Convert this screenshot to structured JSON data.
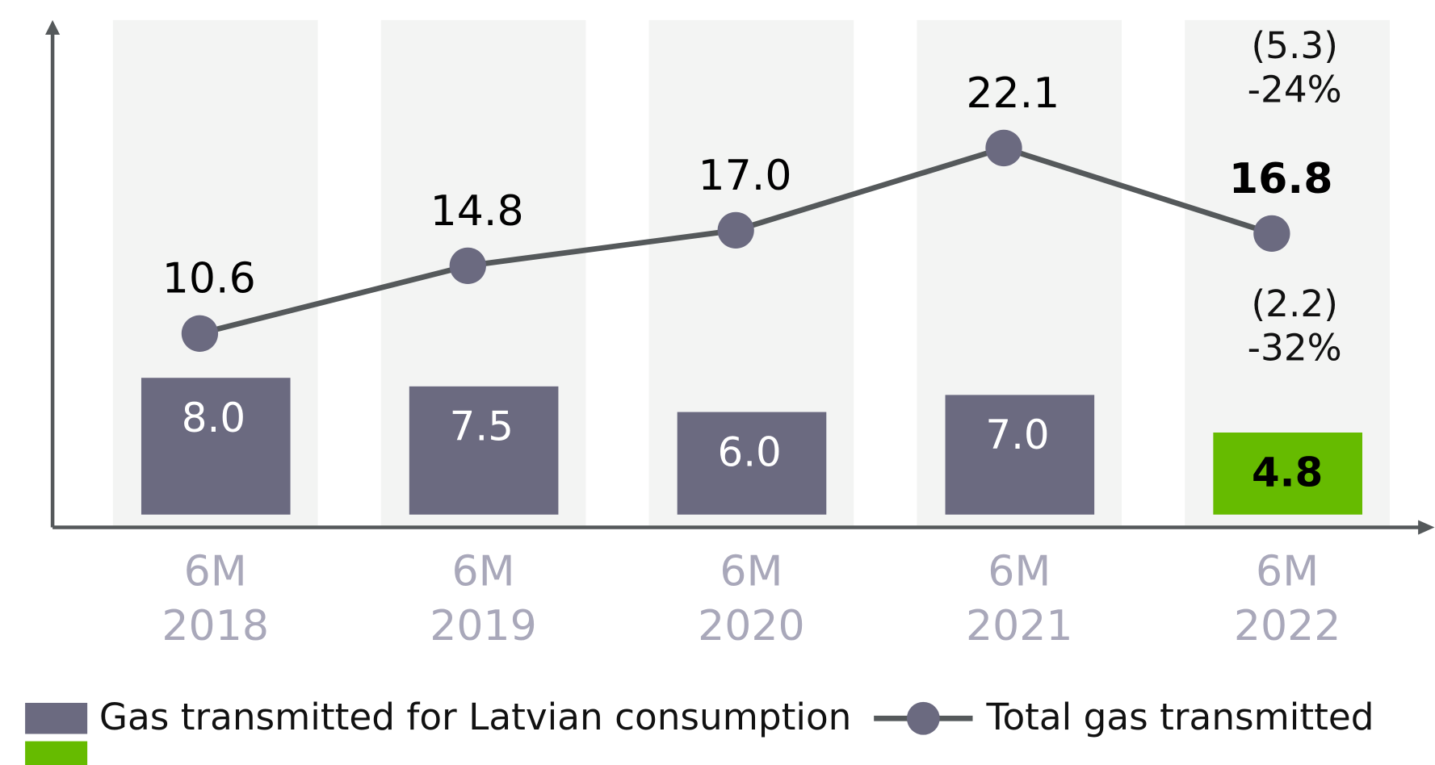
{
  "chart_data": {
    "type": "combo",
    "categories": [
      "6M 2018",
      "6M 2019",
      "6M 2020",
      "6M 2021",
      "6M 2022"
    ],
    "series": [
      {
        "name": "Gas transmitted for Latvian consumption",
        "type": "bar",
        "color": "#6b6a80",
        "highlight_color": "#66bb00",
        "values": [
          8.0,
          7.5,
          6.0,
          7.0,
          4.8
        ],
        "value_labels": [
          "8.0",
          "7.5",
          "6.0",
          "7.0",
          "4.8"
        ]
      },
      {
        "name": "Total gas transmitted",
        "type": "line",
        "color": "#55595b",
        "marker_color": "#6b6a80",
        "values": [
          10.6,
          14.8,
          17.0,
          22.1,
          16.8
        ],
        "value_labels": [
          "10.6",
          "14.8",
          "17.0",
          "22.1",
          "16.8"
        ]
      }
    ],
    "annotations": [
      {
        "series": 1,
        "index": 4,
        "lines": [
          "(5.3)",
          "-24%"
        ]
      },
      {
        "series": 0,
        "index": 4,
        "lines": [
          "(2.2)",
          "-32%"
        ]
      }
    ]
  }
}
